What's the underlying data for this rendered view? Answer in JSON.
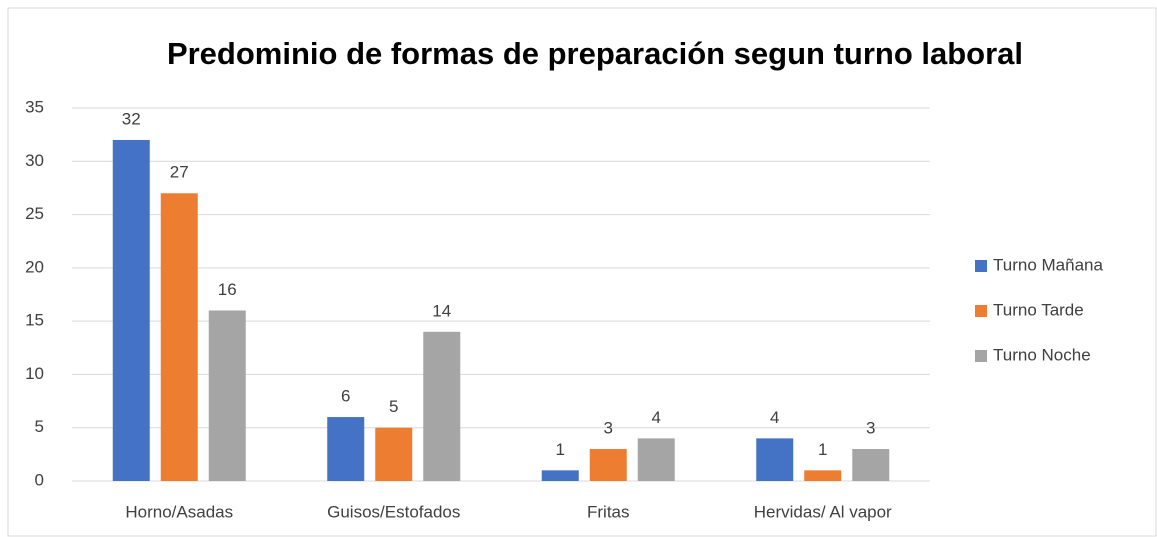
{
  "chart_data": {
    "type": "bar",
    "title": "Predominio de formas de preparación segun turno laboral",
    "categories": [
      "Horno/Asadas",
      "Guisos/Estofados",
      "Fritas",
      "Hervidas/ Al vapor"
    ],
    "series": [
      {
        "name": "Turno Mañana",
        "color": "#4472c4",
        "values": [
          32,
          6,
          1,
          4
        ]
      },
      {
        "name": "Turno Tarde",
        "color": "#ed7d31",
        "values": [
          27,
          5,
          3,
          1
        ]
      },
      {
        "name": "Turno Noche",
        "color": "#a5a5a5",
        "values": [
          16,
          14,
          4,
          3
        ]
      }
    ],
    "ylim": [
      0,
      35
    ],
    "yticks": [
      0,
      5,
      10,
      15,
      20,
      25,
      30,
      35
    ],
    "grid": true,
    "legend": "right"
  }
}
